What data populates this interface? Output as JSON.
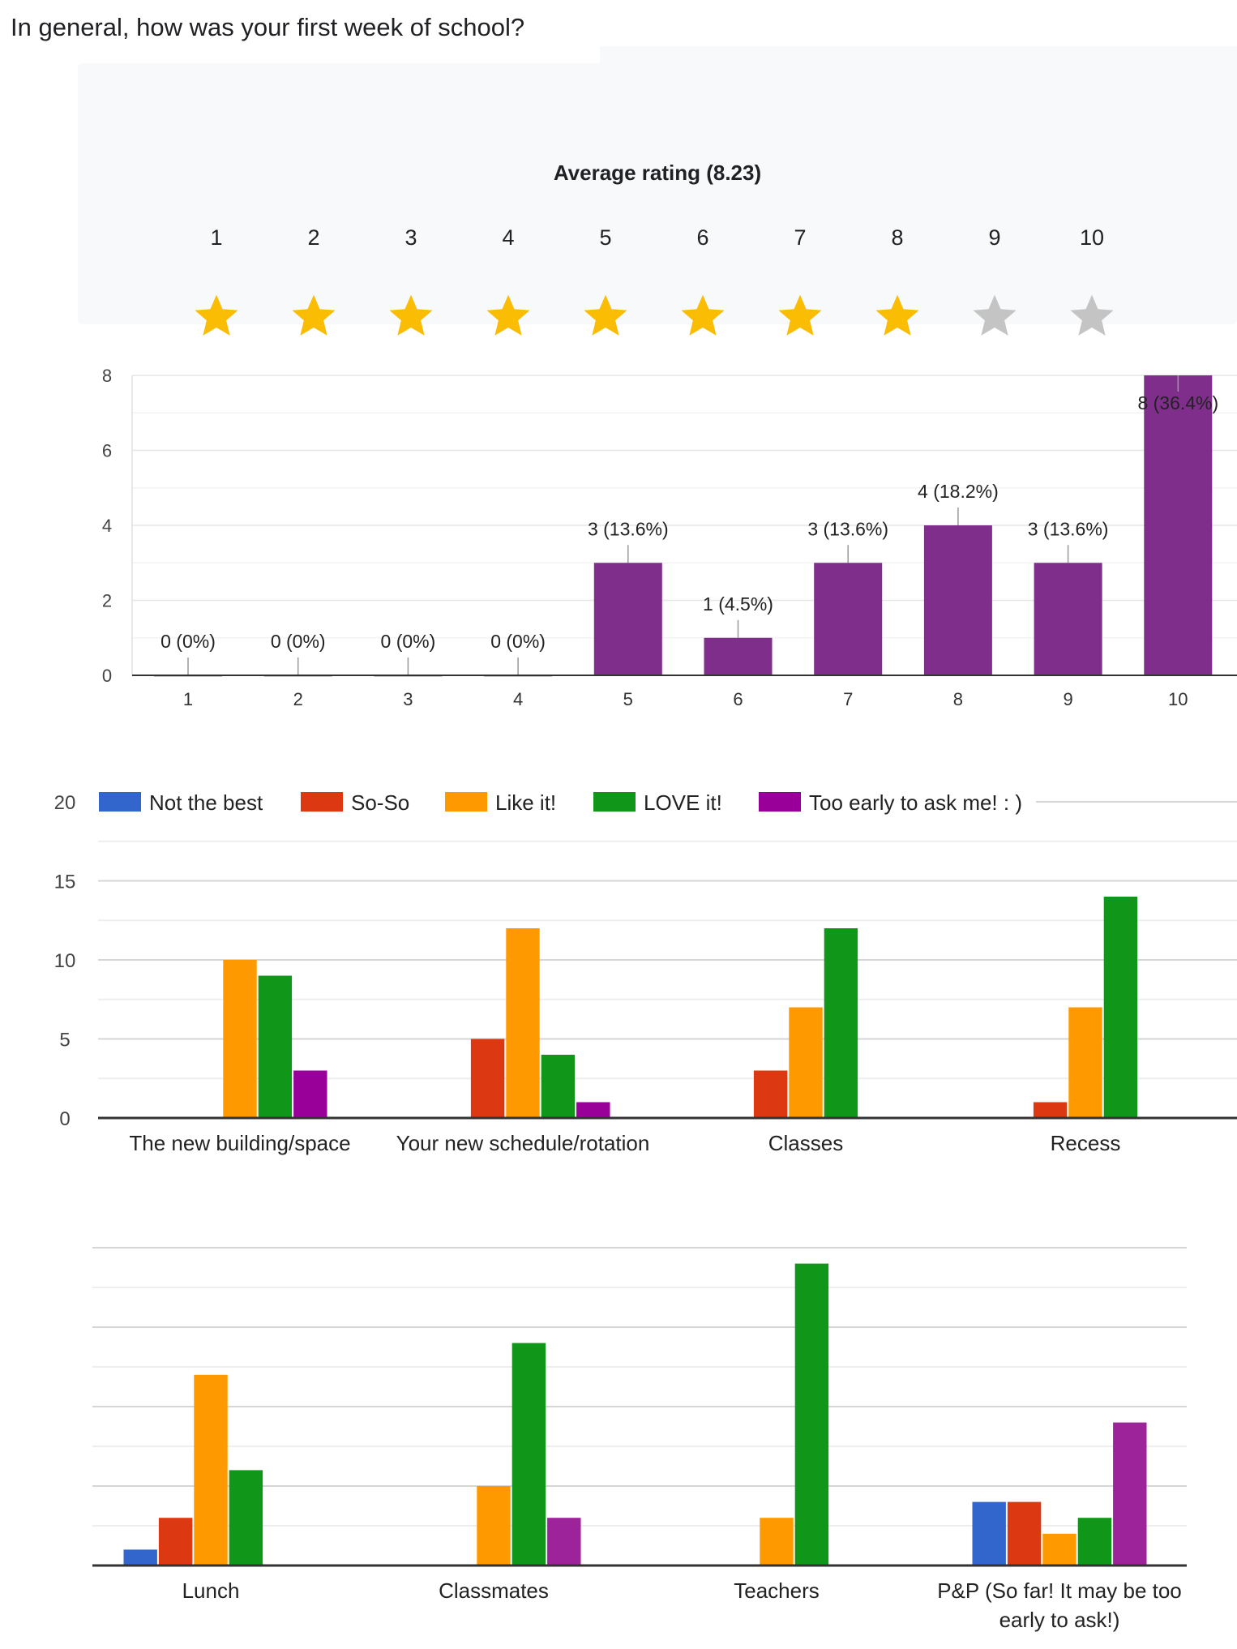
{
  "question": "In general, how was your first week of school?",
  "rating_panel": {
    "average_label": "Average rating (8.23)",
    "average": 8.23,
    "scale": [
      "1",
      "2",
      "3",
      "4",
      "5",
      "6",
      "7",
      "8",
      "9",
      "10"
    ],
    "filled_stars": 8,
    "star_color": "#fbbc04",
    "empty_star_color": "#c4c4c4",
    "star_icon": "star-icon"
  },
  "chart_data": [
    {
      "type": "bar",
      "categories": [
        "1",
        "2",
        "3",
        "4",
        "5",
        "6",
        "7",
        "8",
        "9",
        "10"
      ],
      "values": [
        0,
        0,
        0,
        0,
        3,
        1,
        3,
        4,
        3,
        8
      ],
      "data_labels": [
        "0 (0%)",
        "0 (0%)",
        "0 (0%)",
        "0 (0%)",
        "3 (13.6%)",
        "1 (4.5%)",
        "3 (13.6%)",
        "4 (18.2%)",
        "3 (13.6%)",
        "8 (36.4%)"
      ],
      "yticks": [
        "0",
        "2",
        "4",
        "6",
        "8"
      ],
      "ylim": [
        0,
        8
      ],
      "grid": true,
      "color": "#7f2f8b"
    },
    {
      "type": "bar",
      "categories": [
        "The new building/space",
        "Your new schedule/rotation",
        "Classes",
        "Recess"
      ],
      "series": [
        {
          "name": "Not the best",
          "color": "#3366cc",
          "values": [
            0,
            0,
            0,
            0
          ]
        },
        {
          "name": "So-So",
          "color": "#dc3912",
          "values": [
            0,
            5,
            3,
            1
          ]
        },
        {
          "name": "Like it!",
          "color": "#ff9900",
          "values": [
            10,
            12,
            7,
            7
          ]
        },
        {
          "name": "LOVE it!",
          "color": "#109618",
          "values": [
            9,
            4,
            12,
            14
          ]
        },
        {
          "name": "Too early to ask me! : )",
          "color": "#990099",
          "values": [
            3,
            1,
            0,
            0
          ]
        }
      ],
      "yticks": [
        "0",
        "5",
        "10",
        "15",
        "20"
      ],
      "ylim": [
        0,
        20
      ],
      "grid": true,
      "legend": "top"
    },
    {
      "type": "bar",
      "categories": [
        [
          "Lunch"
        ],
        [
          "Classmates"
        ],
        [
          "Teachers"
        ],
        [
          "P&P (So far! It may be too",
          "early to ask!)"
        ]
      ],
      "series": [
        {
          "name": "Not the best",
          "color": "#3366cc",
          "values": [
            1,
            0,
            0,
            4
          ]
        },
        {
          "name": "So-So",
          "color": "#dc3912",
          "values": [
            3,
            0,
            0,
            4
          ]
        },
        {
          "name": "Like it!",
          "color": "#ff9900",
          "values": [
            12,
            5,
            3,
            2
          ]
        },
        {
          "name": "LOVE it!",
          "color": "#109618",
          "values": [
            6,
            14,
            19,
            3
          ]
        },
        {
          "name": "Too early to ask me! : )",
          "color": "#9c2399",
          "values": [
            0,
            3,
            0,
            9
          ]
        }
      ],
      "ylim": [
        0,
        20
      ],
      "grid": true
    }
  ]
}
